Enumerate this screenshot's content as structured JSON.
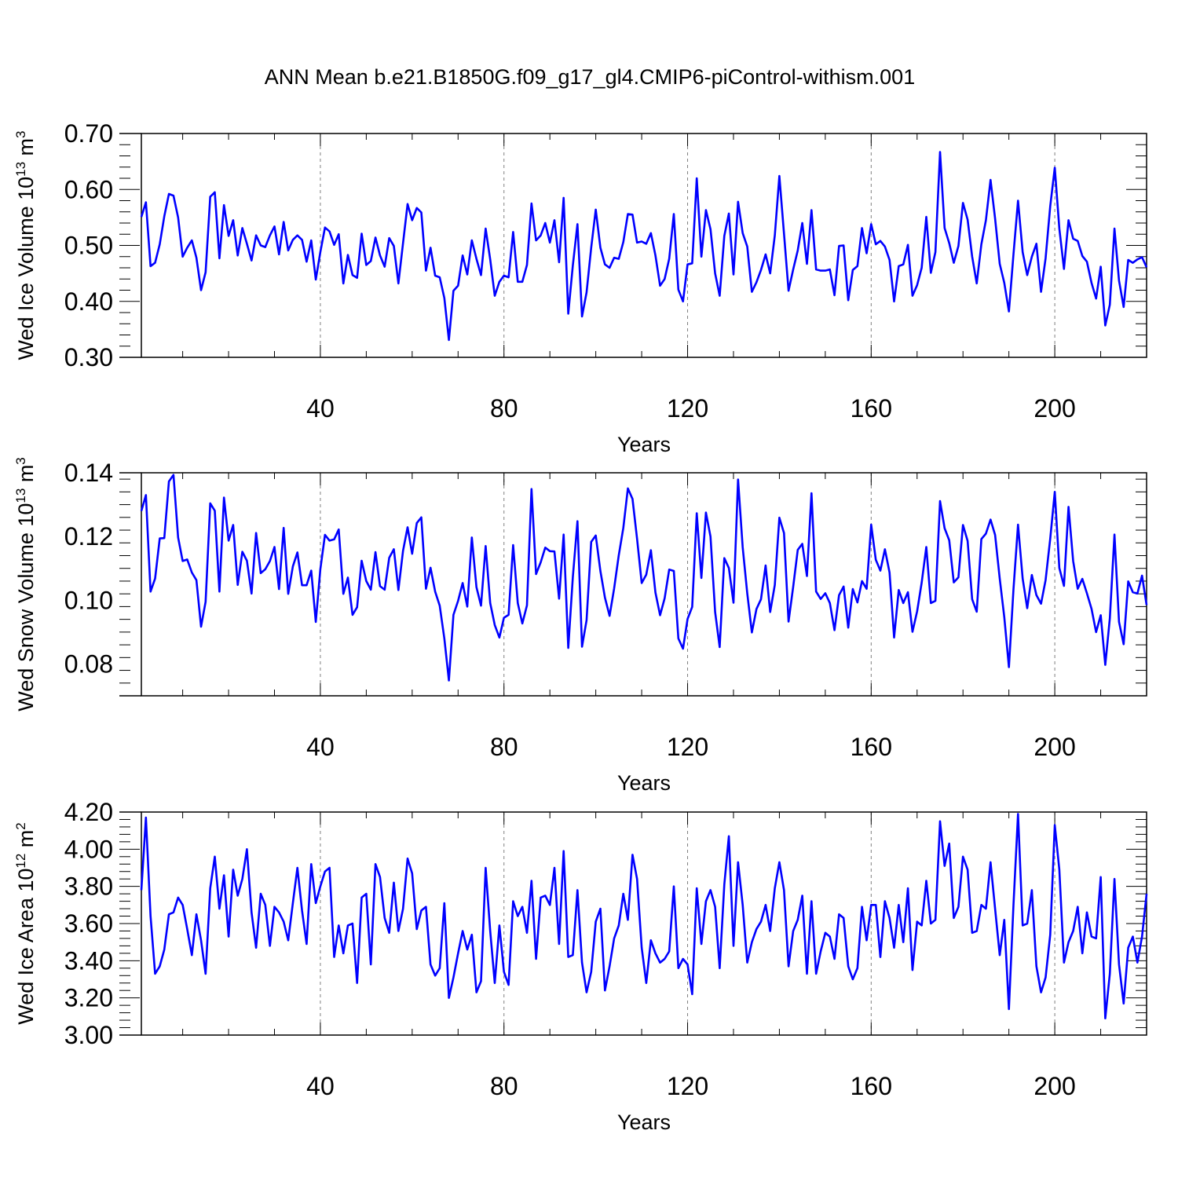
{
  "figure": {
    "title": "ANN Mean b.e21.B1850G.f09_g17_gl4.CMIP6-piControl-withism.001"
  },
  "colors": {
    "line": "#0000ff",
    "frame": "#000000",
    "grid": "#808080"
  },
  "chart_data": [
    {
      "type": "line",
      "title": "",
      "xlabel": "Years",
      "ylabel": "Wed Ice Volume 10",
      "ylabel_exp": "13",
      "ylabel_unit": "m",
      "ylabel_unit_exp": "3",
      "xlim": [
        1,
        220
      ],
      "ylim": [
        0.3,
        0.7
      ],
      "xticks": [
        40,
        80,
        120,
        160,
        200
      ],
      "xtick_labels": [
        "40",
        "80",
        "120",
        "160",
        "200"
      ],
      "yticks": [
        0.3,
        0.4,
        0.5,
        0.6,
        0.7
      ],
      "ytick_labels": [
        "0.30",
        "0.40",
        "0.50",
        "0.60",
        "0.70"
      ],
      "grid": "vertical dashed at major x ticks",
      "series": [
        {
          "values": [
            0.551,
            0.577,
            0.463,
            0.469,
            0.502,
            0.552,
            0.592,
            0.589,
            0.55,
            0.48,
            0.496,
            0.509,
            0.478,
            0.42,
            0.452,
            0.587,
            0.595,
            0.477,
            0.572,
            0.517,
            0.545,
            0.482,
            0.531,
            0.503,
            0.473,
            0.518,
            0.5,
            0.497,
            0.518,
            0.534,
            0.484,
            0.542,
            0.491,
            0.51,
            0.518,
            0.51,
            0.471,
            0.509,
            0.439,
            0.488,
            0.532,
            0.525,
            0.501,
            0.52,
            0.432,
            0.483,
            0.447,
            0.442,
            0.521,
            0.465,
            0.472,
            0.514,
            0.482,
            0.462,
            0.513,
            0.499,
            0.432,
            0.504,
            0.574,
            0.545,
            0.567,
            0.559,
            0.455,
            0.496,
            0.446,
            0.443,
            0.406,
            0.331,
            0.419,
            0.428,
            0.482,
            0.448,
            0.509,
            0.476,
            0.447,
            0.53,
            0.475,
            0.41,
            0.435,
            0.446,
            0.443,
            0.524,
            0.435,
            0.435,
            0.465,
            0.575,
            0.509,
            0.518,
            0.54,
            0.505,
            0.545,
            0.47,
            0.585,
            0.378,
            0.464,
            0.538,
            0.373,
            0.416,
            0.496,
            0.564,
            0.496,
            0.466,
            0.46,
            0.478,
            0.476,
            0.506,
            0.556,
            0.555,
            0.505,
            0.507,
            0.503,
            0.522,
            0.482,
            0.428,
            0.44,
            0.476,
            0.556,
            0.421,
            0.4,
            0.466,
            0.468,
            0.62,
            0.48,
            0.563,
            0.529,
            0.45,
            0.41,
            0.517,
            0.557,
            0.448,
            0.578,
            0.522,
            0.498,
            0.417,
            0.434,
            0.456,
            0.484,
            0.45,
            0.518,
            0.624,
            0.521,
            0.419,
            0.457,
            0.491,
            0.54,
            0.467,
            0.563,
            0.457,
            0.455,
            0.455,
            0.457,
            0.411,
            0.499,
            0.5,
            0.402,
            0.456,
            0.463,
            0.531,
            0.486,
            0.538,
            0.502,
            0.508,
            0.498,
            0.474,
            0.4,
            0.463,
            0.466,
            0.501,
            0.41,
            0.429,
            0.46,
            0.551,
            0.451,
            0.488,
            0.667,
            0.531,
            0.504,
            0.469,
            0.499,
            0.576,
            0.546,
            0.48,
            0.432,
            0.502,
            0.545,
            0.617,
            0.548,
            0.467,
            0.433,
            0.382,
            0.484,
            0.58,
            0.488,
            0.447,
            0.48,
            0.503,
            0.417,
            0.477,
            0.57,
            0.639,
            0.53,
            0.458,
            0.545,
            0.512,
            0.508,
            0.481,
            0.471,
            0.433,
            0.405,
            0.462,
            0.357,
            0.394,
            0.53,
            0.437,
            0.39,
            0.474,
            0.469,
            0.475,
            0.479,
            0.461
          ]
        }
      ]
    },
    {
      "type": "line",
      "title": "",
      "xlabel": "Years",
      "ylabel": "Wed Snow Volume 10",
      "ylabel_exp": "13",
      "ylabel_unit": "m",
      "ylabel_unit_exp": "3",
      "xlim": [
        1,
        220
      ],
      "ylim": [
        0.07,
        0.14
      ],
      "xticks": [
        40,
        80,
        120,
        160,
        200
      ],
      "xtick_labels": [
        "40",
        "80",
        "120",
        "160",
        "200"
      ],
      "yticks": [
        0.08,
        0.1,
        0.12,
        0.14
      ],
      "ytick_labels": [
        "0.08",
        "0.10",
        "0.12",
        "0.14"
      ],
      "grid": "vertical dashed at major x ticks",
      "series": [
        {
          "values": [
            0.128,
            0.133,
            0.1027,
            0.1068,
            0.1194,
            0.1195,
            0.1373,
            0.1393,
            0.1197,
            0.1123,
            0.1128,
            0.1087,
            0.1063,
            0.0917,
            0.0995,
            0.1304,
            0.1281,
            0.1027,
            0.1322,
            0.1187,
            0.1236,
            0.1048,
            0.1152,
            0.1124,
            0.1021,
            0.1211,
            0.1085,
            0.1097,
            0.1123,
            0.1167,
            0.1035,
            0.1227,
            0.102,
            0.1106,
            0.115,
            0.1047,
            0.1047,
            0.1093,
            0.0932,
            0.1097,
            0.1205,
            0.1187,
            0.1191,
            0.1222,
            0.102,
            0.1071,
            0.0954,
            0.0978,
            0.1124,
            0.106,
            0.1033,
            0.1151,
            0.1044,
            0.1033,
            0.1133,
            0.116,
            0.1032,
            0.1155,
            0.1229,
            0.1146,
            0.1242,
            0.126,
            0.1036,
            0.1102,
            0.1027,
            0.0983,
            0.088,
            0.0748,
            0.0954,
            0.0998,
            0.1054,
            0.098,
            0.1197,
            0.1041,
            0.0983,
            0.117,
            0.0991,
            0.0922,
            0.0883,
            0.0945,
            0.0954,
            0.1173,
            0.0991,
            0.0927,
            0.0984,
            0.1349,
            0.1082,
            0.1119,
            0.1165,
            0.1154,
            0.1153,
            0.1005,
            0.1206,
            0.085,
            0.1072,
            0.1248,
            0.0854,
            0.0937,
            0.1183,
            0.1203,
            0.1092,
            0.1008,
            0.0951,
            0.1037,
            0.1141,
            0.1227,
            0.1351,
            0.1318,
            0.1193,
            0.1054,
            0.108,
            0.1157,
            0.1024,
            0.0953,
            0.1006,
            0.1096,
            0.1092,
            0.088,
            0.0848,
            0.0941,
            0.0979,
            0.1273,
            0.107,
            0.1275,
            0.12,
            0.0963,
            0.0853,
            0.1132,
            0.1101,
            0.0992,
            0.1379,
            0.1166,
            0.1022,
            0.0899,
            0.0972,
            0.1003,
            0.1109,
            0.0963,
            0.1048,
            0.1259,
            0.1211,
            0.0933,
            0.1042,
            0.1158,
            0.1177,
            0.1076,
            0.1336,
            0.1027,
            0.1004,
            0.1022,
            0.0991,
            0.0906,
            0.1016,
            0.1043,
            0.0914,
            0.1035,
            0.0993,
            0.106,
            0.1036,
            0.1237,
            0.1127,
            0.1093,
            0.116,
            0.1087,
            0.0883,
            0.1032,
            0.0991,
            0.1025,
            0.0901,
            0.0965,
            0.1055,
            0.1167,
            0.0991,
            0.0998,
            0.1311,
            0.1226,
            0.1188,
            0.1056,
            0.1072,
            0.1236,
            0.1186,
            0.1003,
            0.0964,
            0.1192,
            0.1209,
            0.1253,
            0.1205,
            0.1068,
            0.0947,
            0.079,
            0.1034,
            0.1237,
            0.1068,
            0.0975,
            0.1079,
            0.1016,
            0.0989,
            0.1063,
            0.1193,
            0.134,
            0.1101,
            0.1045,
            0.1293,
            0.1123,
            0.1036,
            0.1067,
            0.1022,
            0.0973,
            0.09,
            0.0953,
            0.0797,
            0.0943,
            0.1206,
            0.0932,
            0.0862,
            0.1059,
            0.1025,
            0.1021,
            0.1077,
            0.0985
          ]
        }
      ]
    },
    {
      "type": "line",
      "title": "",
      "xlabel": "Years",
      "ylabel": "Wed Ice Area 10",
      "ylabel_exp": "12",
      "ylabel_unit": "m",
      "ylabel_unit_exp": "2",
      "xlim": [
        1,
        220
      ],
      "ylim": [
        3.0,
        4.2
      ],
      "xticks": [
        40,
        80,
        120,
        160,
        200
      ],
      "xtick_labels": [
        "40",
        "80",
        "120",
        "160",
        "200"
      ],
      "yticks": [
        3.0,
        3.2,
        3.4,
        3.6,
        3.8,
        4.0,
        4.2
      ],
      "ytick_labels": [
        "3.00",
        "3.20",
        "3.40",
        "3.60",
        "3.80",
        "4.00",
        "4.20"
      ],
      "grid": "vertical dashed at major x ticks",
      "series": [
        {
          "values": [
            3.78,
            4.17,
            3.64,
            3.33,
            3.37,
            3.46,
            3.65,
            3.66,
            3.74,
            3.7,
            3.57,
            3.43,
            3.65,
            3.51,
            3.33,
            3.79,
            3.96,
            3.68,
            3.86,
            3.53,
            3.89,
            3.75,
            3.84,
            4.0,
            3.66,
            3.47,
            3.76,
            3.7,
            3.48,
            3.69,
            3.66,
            3.61,
            3.51,
            3.71,
            3.9,
            3.67,
            3.49,
            3.92,
            3.71,
            3.8,
            3.88,
            3.9,
            3.42,
            3.59,
            3.44,
            3.59,
            3.6,
            3.28,
            3.74,
            3.76,
            3.38,
            3.92,
            3.85,
            3.63,
            3.55,
            3.82,
            3.56,
            3.68,
            3.95,
            3.87,
            3.57,
            3.67,
            3.69,
            3.38,
            3.32,
            3.36,
            3.71,
            3.2,
            3.31,
            3.44,
            3.56,
            3.46,
            3.54,
            3.23,
            3.29,
            3.9,
            3.56,
            3.28,
            3.59,
            3.34,
            3.27,
            3.72,
            3.64,
            3.69,
            3.55,
            3.83,
            3.41,
            3.74,
            3.75,
            3.7,
            3.9,
            3.49,
            3.99,
            3.42,
            3.43,
            3.78,
            3.39,
            3.23,
            3.34,
            3.61,
            3.68,
            3.24,
            3.37,
            3.52,
            3.59,
            3.76,
            3.62,
            3.97,
            3.84,
            3.47,
            3.28,
            3.51,
            3.44,
            3.39,
            3.41,
            3.45,
            3.8,
            3.36,
            3.41,
            3.38,
            3.22,
            3.79,
            3.49,
            3.72,
            3.78,
            3.69,
            3.36,
            3.81,
            4.07,
            3.48,
            3.93,
            3.7,
            3.39,
            3.5,
            3.57,
            3.61,
            3.7,
            3.56,
            3.79,
            3.93,
            3.78,
            3.37,
            3.56,
            3.62,
            3.75,
            3.33,
            3.72,
            3.33,
            3.45,
            3.55,
            3.53,
            3.41,
            3.65,
            3.63,
            3.37,
            3.3,
            3.36,
            3.69,
            3.51,
            3.7,
            3.7,
            3.42,
            3.72,
            3.63,
            3.47,
            3.7,
            3.5,
            3.79,
            3.35,
            3.61,
            3.59,
            3.83,
            3.6,
            3.62,
            4.15,
            3.91,
            4.03,
            3.63,
            3.69,
            3.96,
            3.89,
            3.55,
            3.56,
            3.7,
            3.68,
            3.93,
            3.68,
            3.43,
            3.62,
            3.14,
            3.7,
            4.19,
            3.59,
            3.6,
            3.78,
            3.37,
            3.23,
            3.31,
            3.54,
            4.13,
            3.89,
            3.39,
            3.5,
            3.56,
            3.69,
            3.44,
            3.66,
            3.53,
            3.52,
            3.85,
            3.09,
            3.33,
            3.84,
            3.38,
            3.17,
            3.47,
            3.53,
            3.39,
            3.53,
            3.76
          ]
        }
      ]
    }
  ]
}
